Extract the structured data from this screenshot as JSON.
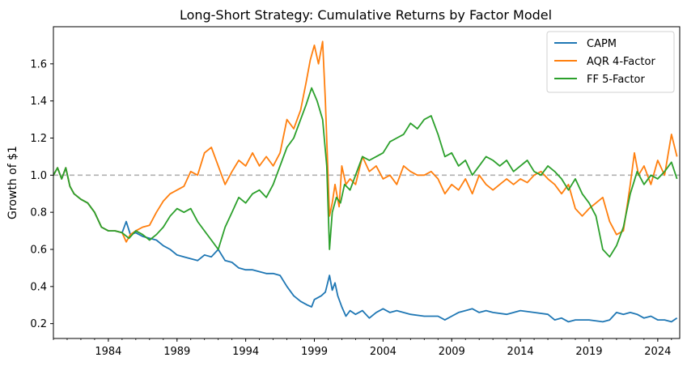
{
  "chart_data": {
    "type": "line",
    "title": "Long-Short Strategy: Cumulative Returns by Factor Model",
    "xlabel": "",
    "ylabel": "Growth of $1",
    "xlim": [
      1980,
      2025.6
    ],
    "ylim": [
      0.12,
      1.8
    ],
    "x_ticks": [
      1984,
      1989,
      1994,
      1999,
      2004,
      2009,
      2014,
      2019,
      2024
    ],
    "y_ticks": [
      0.2,
      0.4,
      0.6,
      0.8,
      1.0,
      1.2,
      1.4,
      1.6
    ],
    "reference_line": {
      "y": 1.0,
      "style": "dashed",
      "color": "#b0b0b0"
    },
    "legend_position": "top-right",
    "grid": false,
    "series": [
      {
        "name": "CAPM",
        "color": "#1f77b4",
        "points": [
          [
            1980.0,
            1.0
          ],
          [
            1980.3,
            1.04
          ],
          [
            1980.6,
            0.98
          ],
          [
            1980.9,
            1.04
          ],
          [
            1981.2,
            0.94
          ],
          [
            1981.5,
            0.9
          ],
          [
            1982.0,
            0.87
          ],
          [
            1982.5,
            0.85
          ],
          [
            1983.0,
            0.8
          ],
          [
            1983.5,
            0.72
          ],
          [
            1984.0,
            0.7
          ],
          [
            1984.5,
            0.7
          ],
          [
            1985.0,
            0.69
          ],
          [
            1985.3,
            0.75
          ],
          [
            1985.6,
            0.68
          ],
          [
            1986.0,
            0.69
          ],
          [
            1986.5,
            0.67
          ],
          [
            1987.0,
            0.66
          ],
          [
            1987.5,
            0.65
          ],
          [
            1988.0,
            0.62
          ],
          [
            1988.5,
            0.6
          ],
          [
            1989.0,
            0.57
          ],
          [
            1989.5,
            0.56
          ],
          [
            1990.0,
            0.55
          ],
          [
            1990.5,
            0.54
          ],
          [
            1991.0,
            0.57
          ],
          [
            1991.5,
            0.56
          ],
          [
            1992.0,
            0.6
          ],
          [
            1992.5,
            0.54
          ],
          [
            1993.0,
            0.53
          ],
          [
            1993.5,
            0.5
          ],
          [
            1994.0,
            0.49
          ],
          [
            1994.5,
            0.49
          ],
          [
            1995.0,
            0.48
          ],
          [
            1995.5,
            0.47
          ],
          [
            1996.0,
            0.47
          ],
          [
            1996.5,
            0.46
          ],
          [
            1997.0,
            0.4
          ],
          [
            1997.5,
            0.35
          ],
          [
            1998.0,
            0.32
          ],
          [
            1998.5,
            0.3
          ],
          [
            1998.8,
            0.29
          ],
          [
            1999.0,
            0.33
          ],
          [
            1999.5,
            0.35
          ],
          [
            1999.8,
            0.37
          ],
          [
            2000.1,
            0.46
          ],
          [
            2000.3,
            0.38
          ],
          [
            2000.5,
            0.42
          ],
          [
            2000.7,
            0.35
          ],
          [
            2001.0,
            0.29
          ],
          [
            2001.3,
            0.24
          ],
          [
            2001.6,
            0.27
          ],
          [
            2002.0,
            0.25
          ],
          [
            2002.5,
            0.27
          ],
          [
            2003.0,
            0.23
          ],
          [
            2003.5,
            0.26
          ],
          [
            2004.0,
            0.28
          ],
          [
            2004.5,
            0.26
          ],
          [
            2005.0,
            0.27
          ],
          [
            2006.0,
            0.25
          ],
          [
            2007.0,
            0.24
          ],
          [
            2008.0,
            0.24
          ],
          [
            2008.5,
            0.22
          ],
          [
            2009.0,
            0.24
          ],
          [
            2009.5,
            0.26
          ],
          [
            2010.0,
            0.27
          ],
          [
            2010.5,
            0.28
          ],
          [
            2011.0,
            0.26
          ],
          [
            2011.5,
            0.27
          ],
          [
            2012.0,
            0.26
          ],
          [
            2013.0,
            0.25
          ],
          [
            2014.0,
            0.27
          ],
          [
            2015.0,
            0.26
          ],
          [
            2016.0,
            0.25
          ],
          [
            2016.5,
            0.22
          ],
          [
            2017.0,
            0.23
          ],
          [
            2017.5,
            0.21
          ],
          [
            2018.0,
            0.22
          ],
          [
            2019.0,
            0.22
          ],
          [
            2020.0,
            0.21
          ],
          [
            2020.5,
            0.22
          ],
          [
            2021.0,
            0.26
          ],
          [
            2021.5,
            0.25
          ],
          [
            2022.0,
            0.26
          ],
          [
            2022.5,
            0.25
          ],
          [
            2023.0,
            0.23
          ],
          [
            2023.5,
            0.24
          ],
          [
            2024.0,
            0.22
          ],
          [
            2024.5,
            0.22
          ],
          [
            2025.0,
            0.21
          ],
          [
            2025.4,
            0.23
          ]
        ]
      },
      {
        "name": "AQR 4-Factor",
        "color": "#ff7f0e",
        "points": [
          [
            1980.0,
            1.0
          ],
          [
            1980.3,
            1.04
          ],
          [
            1980.6,
            0.98
          ],
          [
            1980.9,
            1.04
          ],
          [
            1981.2,
            0.94
          ],
          [
            1981.5,
            0.9
          ],
          [
            1982.0,
            0.87
          ],
          [
            1982.5,
            0.85
          ],
          [
            1983.0,
            0.8
          ],
          [
            1983.5,
            0.72
          ],
          [
            1984.0,
            0.7
          ],
          [
            1984.5,
            0.7
          ],
          [
            1985.0,
            0.69
          ],
          [
            1985.3,
            0.64
          ],
          [
            1985.6,
            0.68
          ],
          [
            1986.0,
            0.7
          ],
          [
            1986.5,
            0.72
          ],
          [
            1987.0,
            0.73
          ],
          [
            1987.5,
            0.8
          ],
          [
            1988.0,
            0.86
          ],
          [
            1988.5,
            0.9
          ],
          [
            1989.0,
            0.92
          ],
          [
            1989.5,
            0.94
          ],
          [
            1990.0,
            1.02
          ],
          [
            1990.5,
            1.0
          ],
          [
            1991.0,
            1.12
          ],
          [
            1991.5,
            1.15
          ],
          [
            1992.0,
            1.05
          ],
          [
            1992.5,
            0.95
          ],
          [
            1993.0,
            1.02
          ],
          [
            1993.5,
            1.08
          ],
          [
            1994.0,
            1.05
          ],
          [
            1994.5,
            1.12
          ],
          [
            1995.0,
            1.05
          ],
          [
            1995.5,
            1.1
          ],
          [
            1996.0,
            1.05
          ],
          [
            1996.5,
            1.12
          ],
          [
            1997.0,
            1.3
          ],
          [
            1997.5,
            1.25
          ],
          [
            1998.0,
            1.35
          ],
          [
            1998.4,
            1.5
          ],
          [
            1998.7,
            1.62
          ],
          [
            1999.0,
            1.7
          ],
          [
            1999.3,
            1.6
          ],
          [
            1999.6,
            1.72
          ],
          [
            1999.8,
            1.4
          ],
          [
            2000.1,
            0.78
          ],
          [
            2000.3,
            0.85
          ],
          [
            2000.5,
            0.95
          ],
          [
            2000.8,
            0.83
          ],
          [
            2001.0,
            1.05
          ],
          [
            2001.3,
            0.95
          ],
          [
            2001.6,
            0.98
          ],
          [
            2002.0,
            0.95
          ],
          [
            2002.5,
            1.1
          ],
          [
            2003.0,
            1.02
          ],
          [
            2003.5,
            1.05
          ],
          [
            2004.0,
            0.98
          ],
          [
            2004.5,
            1.0
          ],
          [
            2005.0,
            0.95
          ],
          [
            2005.5,
            1.05
          ],
          [
            2006.0,
            1.02
          ],
          [
            2006.5,
            1.0
          ],
          [
            2007.0,
            1.0
          ],
          [
            2007.5,
            1.02
          ],
          [
            2008.0,
            0.98
          ],
          [
            2008.5,
            0.9
          ],
          [
            2009.0,
            0.95
          ],
          [
            2009.5,
            0.92
          ],
          [
            2010.0,
            0.98
          ],
          [
            2010.5,
            0.9
          ],
          [
            2011.0,
            1.0
          ],
          [
            2011.5,
            0.95
          ],
          [
            2012.0,
            0.92
          ],
          [
            2012.5,
            0.95
          ],
          [
            2013.0,
            0.98
          ],
          [
            2013.5,
            0.95
          ],
          [
            2014.0,
            0.98
          ],
          [
            2014.5,
            0.96
          ],
          [
            2015.0,
            1.0
          ],
          [
            2015.5,
            1.02
          ],
          [
            2016.0,
            0.98
          ],
          [
            2016.5,
            0.95
          ],
          [
            2017.0,
            0.9
          ],
          [
            2017.5,
            0.95
          ],
          [
            2018.0,
            0.82
          ],
          [
            2018.5,
            0.78
          ],
          [
            2019.0,
            0.82
          ],
          [
            2019.5,
            0.85
          ],
          [
            2020.0,
            0.88
          ],
          [
            2020.5,
            0.75
          ],
          [
            2021.0,
            0.68
          ],
          [
            2021.5,
            0.7
          ],
          [
            2022.0,
            0.95
          ],
          [
            2022.3,
            1.12
          ],
          [
            2022.6,
            1.0
          ],
          [
            2023.0,
            1.05
          ],
          [
            2023.5,
            0.95
          ],
          [
            2024.0,
            1.08
          ],
          [
            2024.5,
            1.0
          ],
          [
            2025.0,
            1.22
          ],
          [
            2025.4,
            1.1
          ]
        ]
      },
      {
        "name": "FF 5-Factor",
        "color": "#2ca02c",
        "points": [
          [
            1980.0,
            1.0
          ],
          [
            1980.3,
            1.04
          ],
          [
            1980.6,
            0.98
          ],
          [
            1980.9,
            1.04
          ],
          [
            1981.2,
            0.94
          ],
          [
            1981.5,
            0.9
          ],
          [
            1982.0,
            0.87
          ],
          [
            1982.5,
            0.85
          ],
          [
            1983.0,
            0.8
          ],
          [
            1983.5,
            0.72
          ],
          [
            1984.0,
            0.7
          ],
          [
            1984.5,
            0.7
          ],
          [
            1985.0,
            0.69
          ],
          [
            1985.5,
            0.66
          ],
          [
            1986.0,
            0.7
          ],
          [
            1986.5,
            0.68
          ],
          [
            1987.0,
            0.65
          ],
          [
            1987.5,
            0.68
          ],
          [
            1988.0,
            0.72
          ],
          [
            1988.5,
            0.78
          ],
          [
            1989.0,
            0.82
          ],
          [
            1989.5,
            0.8
          ],
          [
            1990.0,
            0.82
          ],
          [
            1990.5,
            0.75
          ],
          [
            1991.0,
            0.7
          ],
          [
            1991.5,
            0.65
          ],
          [
            1992.0,
            0.6
          ],
          [
            1992.5,
            0.72
          ],
          [
            1993.0,
            0.8
          ],
          [
            1993.5,
            0.88
          ],
          [
            1994.0,
            0.85
          ],
          [
            1994.5,
            0.9
          ],
          [
            1995.0,
            0.92
          ],
          [
            1995.5,
            0.88
          ],
          [
            1996.0,
            0.95
          ],
          [
            1996.5,
            1.05
          ],
          [
            1997.0,
            1.15
          ],
          [
            1997.5,
            1.2
          ],
          [
            1998.0,
            1.3
          ],
          [
            1998.4,
            1.38
          ],
          [
            1998.8,
            1.47
          ],
          [
            1999.2,
            1.4
          ],
          [
            1999.6,
            1.3
          ],
          [
            1999.9,
            1.05
          ],
          [
            2000.1,
            0.6
          ],
          [
            2000.3,
            0.8
          ],
          [
            2000.6,
            0.88
          ],
          [
            2000.9,
            0.85
          ],
          [
            2001.2,
            0.95
          ],
          [
            2001.6,
            0.92
          ],
          [
            2002.0,
            1.0
          ],
          [
            2002.5,
            1.1
          ],
          [
            2003.0,
            1.08
          ],
          [
            2003.5,
            1.1
          ],
          [
            2004.0,
            1.12
          ],
          [
            2004.5,
            1.18
          ],
          [
            2005.0,
            1.2
          ],
          [
            2005.5,
            1.22
          ],
          [
            2006.0,
            1.28
          ],
          [
            2006.5,
            1.25
          ],
          [
            2007.0,
            1.3
          ],
          [
            2007.5,
            1.32
          ],
          [
            2008.0,
            1.22
          ],
          [
            2008.5,
            1.1
          ],
          [
            2009.0,
            1.12
          ],
          [
            2009.5,
            1.05
          ],
          [
            2010.0,
            1.08
          ],
          [
            2010.5,
            1.0
          ],
          [
            2011.0,
            1.05
          ],
          [
            2011.5,
            1.1
          ],
          [
            2012.0,
            1.08
          ],
          [
            2012.5,
            1.05
          ],
          [
            2013.0,
            1.08
          ],
          [
            2013.5,
            1.02
          ],
          [
            2014.0,
            1.05
          ],
          [
            2014.5,
            1.08
          ],
          [
            2015.0,
            1.02
          ],
          [
            2015.5,
            1.0
          ],
          [
            2016.0,
            1.05
          ],
          [
            2016.5,
            1.02
          ],
          [
            2017.0,
            0.98
          ],
          [
            2017.5,
            0.92
          ],
          [
            2018.0,
            0.98
          ],
          [
            2018.5,
            0.9
          ],
          [
            2019.0,
            0.85
          ],
          [
            2019.5,
            0.78
          ],
          [
            2020.0,
            0.6
          ],
          [
            2020.5,
            0.56
          ],
          [
            2021.0,
            0.62
          ],
          [
            2021.5,
            0.72
          ],
          [
            2022.0,
            0.9
          ],
          [
            2022.5,
            1.02
          ],
          [
            2023.0,
            0.95
          ],
          [
            2023.5,
            1.0
          ],
          [
            2024.0,
            0.98
          ],
          [
            2024.5,
            1.02
          ],
          [
            2025.0,
            1.07
          ],
          [
            2025.4,
            0.98
          ]
        ]
      }
    ]
  }
}
